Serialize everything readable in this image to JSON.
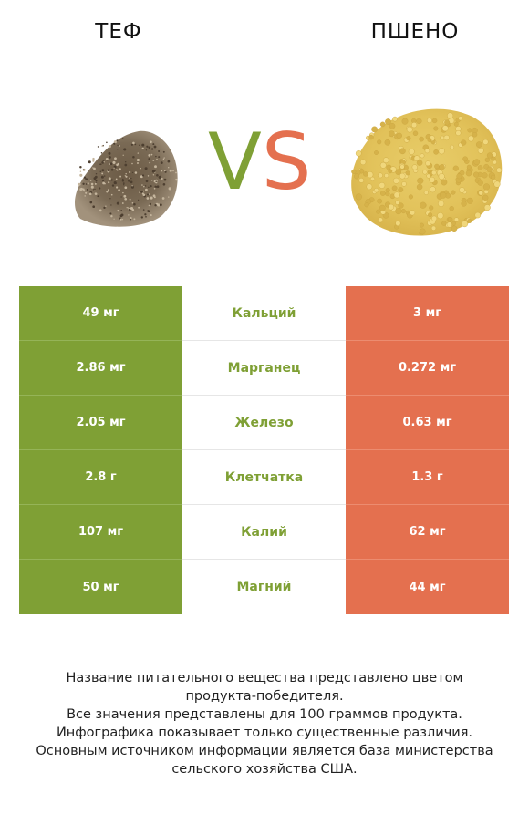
{
  "header": {
    "left_name": "ТЕФ",
    "right_name": "ПШЕНО",
    "vs_v": "V",
    "vs_s": "S",
    "vs_colors": {
      "v": "#7fa035",
      "s": "#e4704f"
    }
  },
  "images": {
    "left": "teff-grain-pile-image",
    "right": "millet-grain-pile-image"
  },
  "rows": [
    {
      "left": "49 мг",
      "nutrient": "Кальций",
      "right": "3 мг"
    },
    {
      "left": "2.86 мг",
      "nutrient": "Марганец",
      "right": "0.272 мг"
    },
    {
      "left": "2.05 мг",
      "nutrient": "Железо",
      "right": "0.63 мг"
    },
    {
      "left": "2.8 г",
      "nutrient": "Клетчатка",
      "right": "1.3 г"
    },
    {
      "left": "107 мг",
      "nutrient": "Калий",
      "right": "62 мг"
    },
    {
      "left": "50 мг",
      "nutrient": "Магний",
      "right": "44 мг"
    }
  ],
  "colors": {
    "left": "#7fa035",
    "right": "#e4704f"
  },
  "footer": {
    "line1": "Название питательного вещества представлено цветом",
    "line2": "продукта-победителя.",
    "line3": "Все значения представлены для 100 граммов продукта.",
    "line4": "Инфографика показывает только существенные различия.",
    "line5": "Основным источником информации является база министерства",
    "line6": "сельского хозяйства США."
  }
}
